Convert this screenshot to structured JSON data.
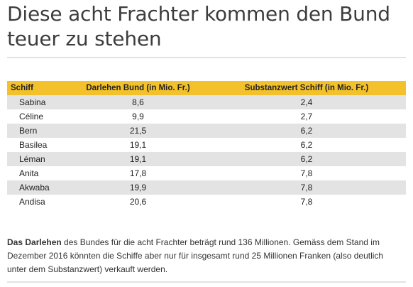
{
  "headline": "Diese acht Frachter kommen den Bund teuer zu stehen",
  "table": {
    "headers": [
      "Schiff",
      "Darlehen Bund (in Mio. Fr.)",
      "Substanzwert Schiff (in Mio. Fr.)"
    ],
    "rows": [
      [
        "Sabina",
        "8,6",
        "2,4"
      ],
      [
        "Céline",
        "9,9",
        "2,7"
      ],
      [
        "Bern",
        "21,5",
        "6,2"
      ],
      [
        "Basilea",
        "19,1",
        "6,2"
      ],
      [
        "Léman",
        "19,1",
        "6,2"
      ],
      [
        "Anita",
        "17,8",
        "7,8"
      ],
      [
        "Akwaba",
        "19,9",
        "7,8"
      ],
      [
        "Andisa",
        "20,6",
        "7,8"
      ]
    ]
  },
  "note": {
    "bold": "Das Darlehen",
    "text": " des Bundes für die acht Frachter beträgt rund 136 Millionen. Gemäss dem Stand im Dezember 2016 könnten die Schiffe aber nur für insgesamt rund 25 Millionen Franken (also deutlich unter dem Substanzwert) verkauft werden."
  },
  "colors": {
    "header_bg": "#f3c12b",
    "row_alt_bg": "#e3e3e3",
    "rule": "#e2e2e2"
  }
}
